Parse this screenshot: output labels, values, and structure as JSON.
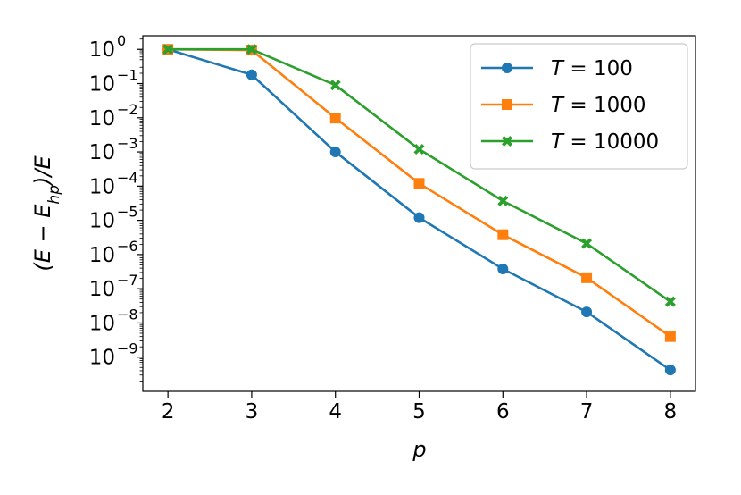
{
  "chart_data": {
    "type": "line",
    "x": [
      2,
      3,
      4,
      5,
      6,
      7,
      8
    ],
    "xticks": [
      "2",
      "3",
      "4",
      "5",
      "6",
      "7",
      "8"
    ],
    "xlabel": "p",
    "ylabel": "(E − E_hp)/E",
    "yscale": "log",
    "ylim": [
      1e-10,
      2.5
    ],
    "yticks": [
      {
        "value": 1,
        "base": "10",
        "exp": "0"
      },
      {
        "value": 0.1,
        "base": "10",
        "exp": "−1"
      },
      {
        "value": 0.01,
        "base": "10",
        "exp": "−2"
      },
      {
        "value": 0.001,
        "base": "10",
        "exp": "−3"
      },
      {
        "value": 0.0001,
        "base": "10",
        "exp": "−4"
      },
      {
        "value": 1e-05,
        "base": "10",
        "exp": "−5"
      },
      {
        "value": 1e-06,
        "base": "10",
        "exp": "−6"
      },
      {
        "value": 1e-07,
        "base": "10",
        "exp": "−7"
      },
      {
        "value": 1e-08,
        "base": "10",
        "exp": "−8"
      },
      {
        "value": 1e-09,
        "base": "10",
        "exp": "−9"
      }
    ],
    "grid": false,
    "legend_position": "top-right",
    "series": [
      {
        "name": "T = 100",
        "color": "#1f77b4",
        "marker": "circle",
        "values": [
          1,
          0.18,
          0.001,
          1.2e-05,
          3.8e-07,
          2.1e-08,
          4.2e-10
        ]
      },
      {
        "name": "T = 1000",
        "color": "#ff7f0e",
        "marker": "square",
        "values": [
          1,
          0.95,
          0.0098,
          0.00012,
          3.8e-06,
          2.1e-07,
          4e-09
        ]
      },
      {
        "name": "T = 10000",
        "color": "#2ca02c",
        "marker": "x",
        "values": [
          1,
          1.0,
          0.09,
          0.0012,
          3.7e-05,
          2.1e-06,
          4.2e-08
        ]
      }
    ]
  }
}
